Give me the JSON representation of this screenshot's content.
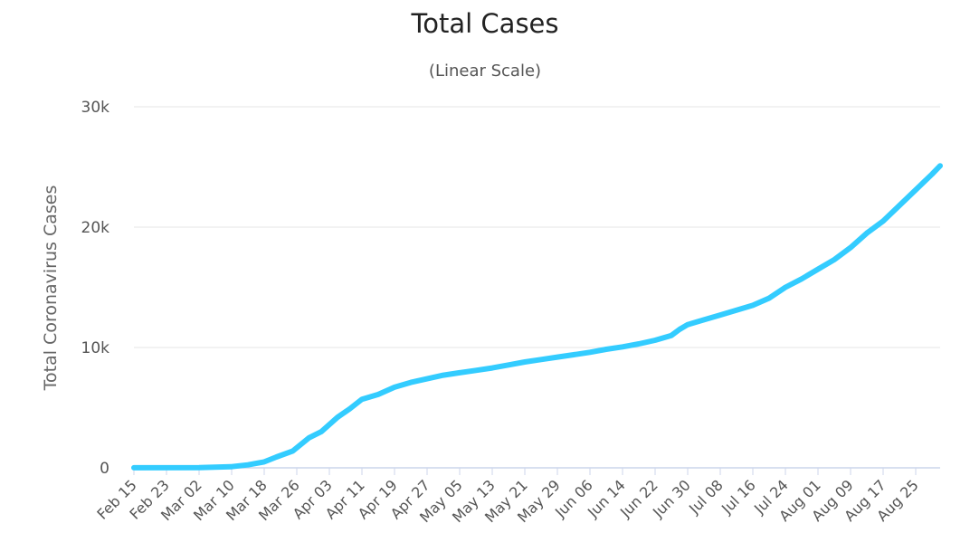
{
  "chart_data": {
    "type": "line",
    "title": "Total Cases",
    "subtitle": "(Linear Scale)",
    "xlabel": "",
    "ylabel": "Total Coronavirus Cases",
    "ylim": [
      0,
      30000
    ],
    "y_ticks": [
      {
        "value": 0,
        "label": "0"
      },
      {
        "value": 10000,
        "label": "10k"
      },
      {
        "value": 20000,
        "label": "20k"
      },
      {
        "value": 30000,
        "label": "30k"
      }
    ],
    "x_tick_labels": [
      "Feb 15",
      "Feb 23",
      "Mar 02",
      "Mar 10",
      "Mar 18",
      "Mar 26",
      "Apr 03",
      "Apr 11",
      "Apr 19",
      "Apr 27",
      "May 05",
      "May 13",
      "May 21",
      "May 29",
      "Jun 06",
      "Jun 14",
      "Jun 22",
      "Jun 30",
      "Jul 08",
      "Jul 16",
      "Jul 24",
      "Aug 01",
      "Aug 09",
      "Aug 17",
      "Aug 25"
    ],
    "x_start": "Feb 15",
    "x_end": "Aug 31",
    "grid": true,
    "legend": "none",
    "colors": {
      "line": "#33ccff",
      "grid": "#e6e6e6",
      "baseline": "#ccd6eb"
    },
    "series": [
      {
        "points": [
          [
            "Feb 15",
            10
          ],
          [
            "Mar 02",
            20
          ],
          [
            "Mar 10",
            100
          ],
          [
            "Mar 14",
            250
          ],
          [
            "Mar 18",
            500
          ],
          [
            "Mar 21",
            900
          ],
          [
            "Mar 25",
            1400
          ],
          [
            "Mar 29",
            2500
          ],
          [
            "Apr 01",
            3000
          ],
          [
            "Apr 05",
            4200
          ],
          [
            "Apr 08",
            4900
          ],
          [
            "Apr 11",
            5700
          ],
          [
            "Apr 15",
            6100
          ],
          [
            "Apr 19",
            6700
          ],
          [
            "Apr 23",
            7100
          ],
          [
            "Apr 27",
            7400
          ],
          [
            "May 01",
            7700
          ],
          [
            "May 05",
            7900
          ],
          [
            "May 09",
            8100
          ],
          [
            "May 13",
            8300
          ],
          [
            "May 17",
            8550
          ],
          [
            "May 21",
            8800
          ],
          [
            "May 25",
            9000
          ],
          [
            "May 29",
            9200
          ],
          [
            "Jun 02",
            9400
          ],
          [
            "Jun 06",
            9600
          ],
          [
            "Jun 10",
            9850
          ],
          [
            "Jun 14",
            10050
          ],
          [
            "Jun 18",
            10300
          ],
          [
            "Jun 22",
            10600
          ],
          [
            "Jun 26",
            11000
          ],
          [
            "Jun 28",
            11500
          ],
          [
            "Jun 30",
            11900
          ],
          [
            "Jul 04",
            12300
          ],
          [
            "Jul 08",
            12700
          ],
          [
            "Jul 12",
            13100
          ],
          [
            "Jul 16",
            13500
          ],
          [
            "Jul 20",
            14100
          ],
          [
            "Jul 24",
            15000
          ],
          [
            "Jul 28",
            15700
          ],
          [
            "Aug 01",
            16500
          ],
          [
            "Aug 05",
            17300
          ],
          [
            "Aug 09",
            18300
          ],
          [
            "Aug 13",
            19500
          ],
          [
            "Aug 17",
            20500
          ],
          [
            "Aug 21",
            21800
          ],
          [
            "Aug 25",
            23100
          ],
          [
            "Aug 29",
            24400
          ],
          [
            "Aug 31",
            25100
          ]
        ]
      }
    ]
  }
}
